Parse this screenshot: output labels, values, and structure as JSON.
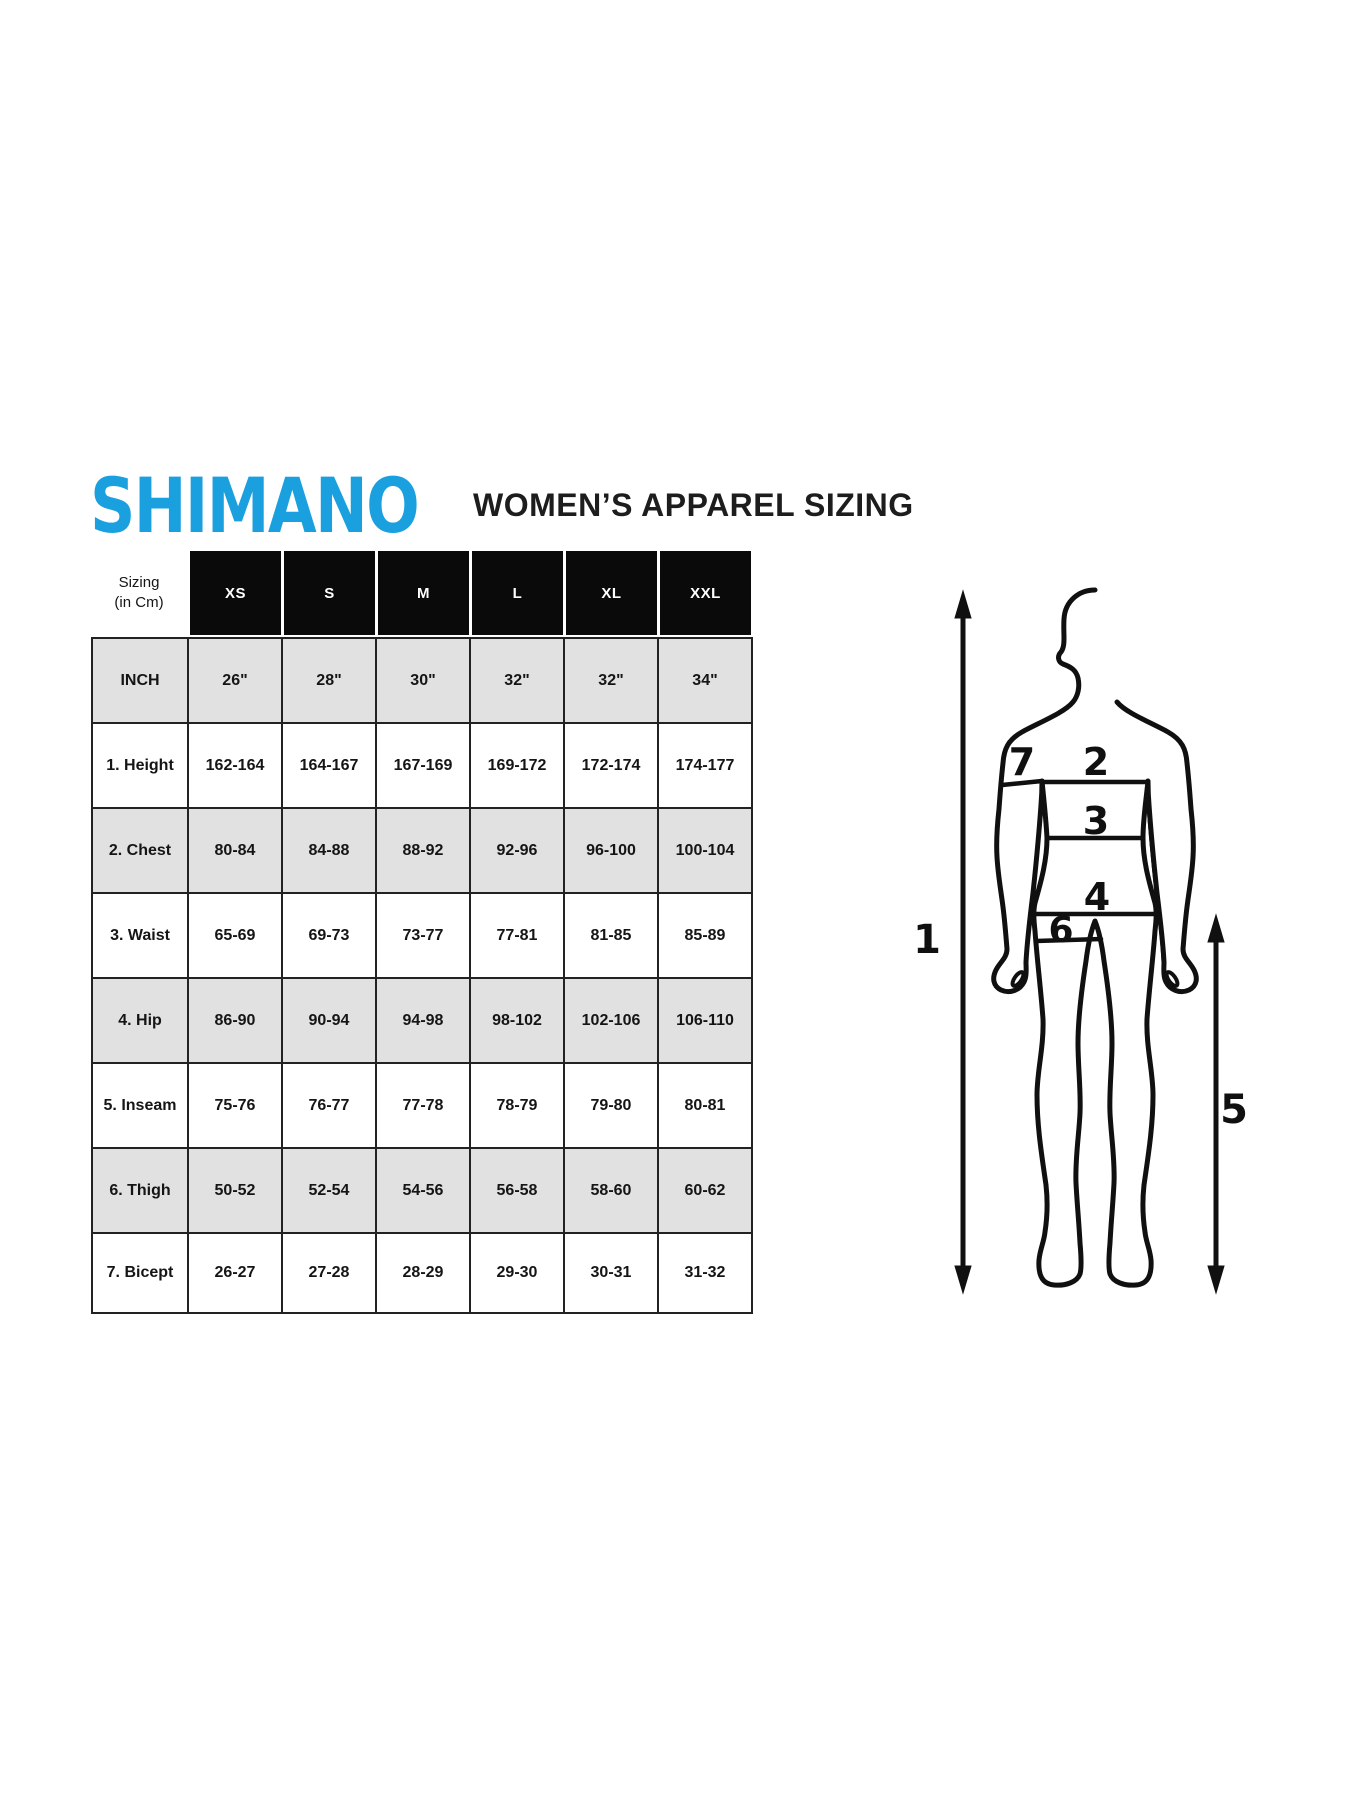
{
  "header": {
    "logo_text": "SHIMANO",
    "title": "WOMEN’S APPAREL SIZING"
  },
  "colors": {
    "brand_blue": "#1BA0DF",
    "header_black": "#0a0a0a",
    "shaded_row": "#e1e1e1",
    "grid_border": "#222222",
    "ink": "#151515"
  },
  "table": {
    "corner_label_line1": "Sizing",
    "corner_label_line2": "(in Cm)",
    "size_columns": [
      "XS",
      "S",
      "M",
      "L",
      "XL",
      "XXL"
    ],
    "rows": [
      {
        "label": "INCH",
        "shaded": true,
        "values": [
          "26\"",
          "28\"",
          "30\"",
          "32\"",
          "32\"",
          "34\""
        ]
      },
      {
        "label": "1. Height",
        "shaded": false,
        "values": [
          "162-164",
          "164-167",
          "167-169",
          "169-172",
          "172-174",
          "174-177"
        ]
      },
      {
        "label": "2. Chest",
        "shaded": true,
        "values": [
          "80-84",
          "84-88",
          "88-92",
          "92-96",
          "96-100",
          "100-104"
        ]
      },
      {
        "label": "3. Waist",
        "shaded": false,
        "values": [
          "65-69",
          "69-73",
          "73-77",
          "77-81",
          "81-85",
          "85-89"
        ]
      },
      {
        "label": "4. Hip",
        "shaded": true,
        "values": [
          "86-90",
          "90-94",
          "94-98",
          "98-102",
          "102-106",
          "106-110"
        ]
      },
      {
        "label": "5. Inseam",
        "shaded": false,
        "values": [
          "75-76",
          "76-77",
          "77-78",
          "78-79",
          "79-80",
          "80-81"
        ]
      },
      {
        "label": "6. Thigh",
        "shaded": true,
        "values": [
          "50-52",
          "52-54",
          "54-56",
          "56-58",
          "58-60",
          "60-62"
        ]
      },
      {
        "label": "7. Bicept",
        "shaded": false,
        "values": [
          "26-27",
          "27-28",
          "28-29",
          "29-30",
          "30-31",
          "31-32"
        ]
      }
    ]
  },
  "figure": {
    "labels": {
      "height": "1",
      "chest": "2",
      "waist": "3",
      "hip": "4",
      "inseam": "5",
      "thigh": "6",
      "bicep": "7"
    }
  }
}
